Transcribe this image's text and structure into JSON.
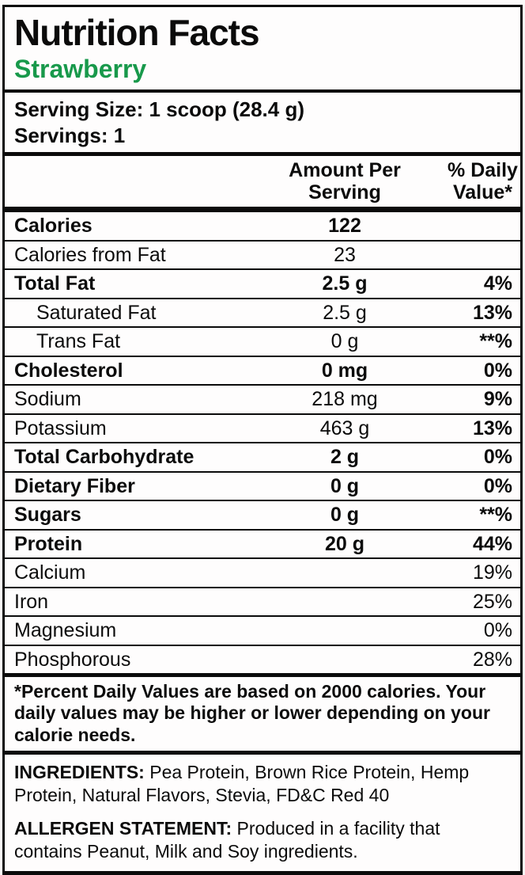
{
  "header": {
    "title": "Nutrition Facts",
    "flavor": "Strawberry"
  },
  "serving": {
    "size": "Serving Size: 1 scoop (28.4 g)",
    "servings": "Servings: 1"
  },
  "columns": {
    "amount": "Amount Per\nServing",
    "daily_value": "% Daily\nValue*"
  },
  "rows": [
    {
      "name": "Calories",
      "amount": "122",
      "dv": ""
    },
    {
      "name": "Calories from Fat",
      "amount": "23",
      "dv": ""
    },
    {
      "name": "Total Fat",
      "amount": "2.5 g",
      "dv": "4%"
    },
    {
      "name": "Saturated Fat",
      "amount": "2.5 g",
      "dv": "13%"
    },
    {
      "name": "Trans Fat",
      "amount": "0 g",
      "dv": "**%"
    },
    {
      "name": "Cholesterol",
      "amount": "0 mg",
      "dv": "0%"
    },
    {
      "name": "Sodium",
      "amount": "218 mg",
      "dv": "9%"
    },
    {
      "name": "Potassium",
      "amount": "463 g",
      "dv": "13%"
    },
    {
      "name": "Total Carbohydrate",
      "amount": "2 g",
      "dv": "0%"
    },
    {
      "name": "Dietary Fiber",
      "amount": "0 g",
      "dv": "0%"
    },
    {
      "name": "Sugars",
      "amount": "0 g",
      "dv": "**%"
    },
    {
      "name": "Protein",
      "amount": "20 g",
      "dv": "44%"
    },
    {
      "name": "Calcium",
      "amount": "",
      "dv": "19%"
    },
    {
      "name": "Iron",
      "amount": "",
      "dv": "25%"
    },
    {
      "name": "Magnesium",
      "amount": "",
      "dv": "0%"
    },
    {
      "name": "Phosphorous",
      "amount": "",
      "dv": "28%"
    }
  ],
  "footnote": "*Percent Daily Values are based on 2000 calories. Your daily values may be higher or lower depending on your calorie needs.",
  "ingredients": {
    "label": "INGREDIENTS:",
    "text": "Pea Protein, Brown Rice Protein, Hemp Protein, Natural Flavors, Stevia, FD&C Red 40"
  },
  "allergen": {
    "label": "ALLERGEN STATEMENT:",
    "text": "Produced in a facility that contains Peanut, Milk and Soy ingredients."
  },
  "colors": {
    "flavor_green": "#18994b",
    "line_black": "#0b0b0b"
  }
}
